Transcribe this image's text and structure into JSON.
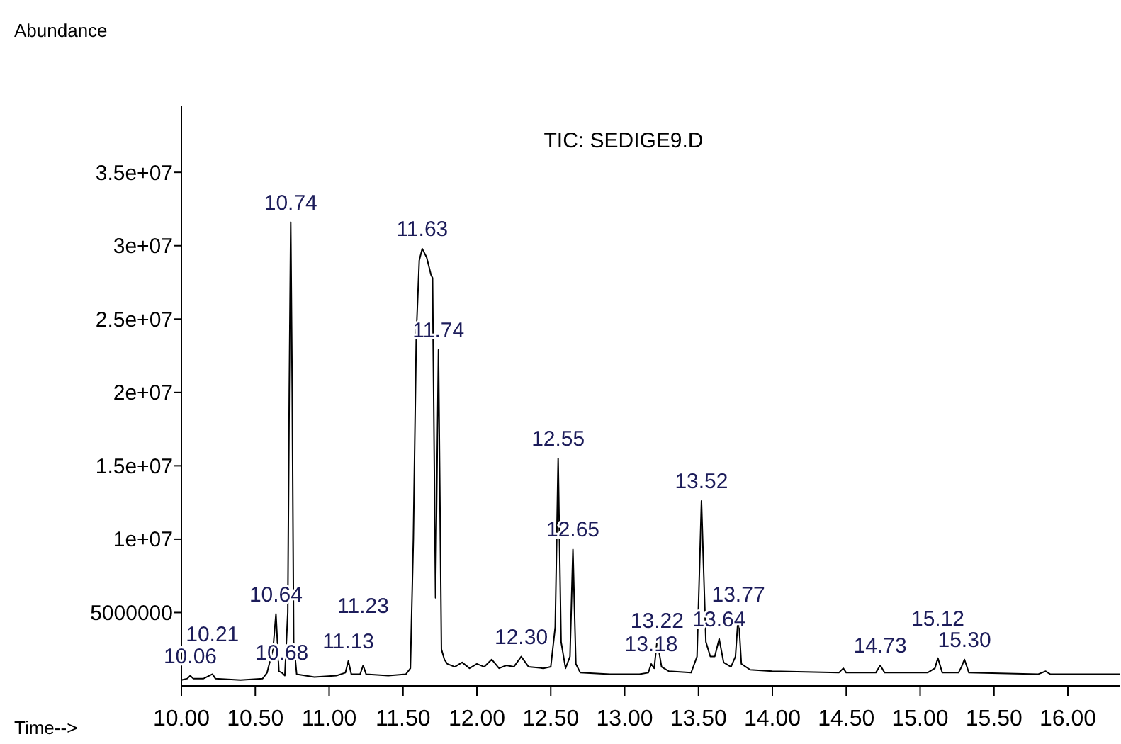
{
  "chart_data": {
    "type": "line",
    "title": "TIC: SEDIGE9.D",
    "ylabel": "Abundance",
    "xlabel": "Time-->",
    "x": [
      10.0,
      10.04,
      10.06,
      10.08,
      10.15,
      10.21,
      10.23,
      10.4,
      10.55,
      10.58,
      10.62,
      10.64,
      10.66,
      10.68,
      10.7,
      10.72,
      10.73,
      10.74,
      10.75,
      10.76,
      10.78,
      10.9,
      11.05,
      11.11,
      11.13,
      11.15,
      11.21,
      11.23,
      11.25,
      11.4,
      11.52,
      11.55,
      11.57,
      11.59,
      11.61,
      11.63,
      11.66,
      11.69,
      11.7,
      11.72,
      11.74,
      11.76,
      11.78,
      11.8,
      11.85,
      11.9,
      11.95,
      12.0,
      12.05,
      12.1,
      12.15,
      12.2,
      12.25,
      12.3,
      12.35,
      12.45,
      12.5,
      12.53,
      12.55,
      12.57,
      12.6,
      12.63,
      12.65,
      12.67,
      12.7,
      12.9,
      13.1,
      13.16,
      13.18,
      13.2,
      13.22,
      13.25,
      13.3,
      13.45,
      13.49,
      13.52,
      13.55,
      13.58,
      13.61,
      13.64,
      13.67,
      13.72,
      13.75,
      13.77,
      13.79,
      13.85,
      14.0,
      14.45,
      14.48,
      14.5,
      14.7,
      14.73,
      14.76,
      15.05,
      15.1,
      15.12,
      15.15,
      15.26,
      15.28,
      15.3,
      15.33,
      15.8,
      15.85,
      15.88,
      16.35
    ],
    "series": [
      {
        "color": "#000000",
        "values": [
          400000,
          500000,
          700000,
          500000,
          500000,
          800000,
          500000,
          400000,
          500000,
          900000,
          2500000,
          4900000,
          1000000,
          900000,
          700000,
          5000000,
          20000000,
          31600000,
          20000000,
          3000000,
          800000,
          600000,
          700000,
          900000,
          1700000,
          800000,
          800000,
          1400000,
          800000,
          700000,
          800000,
          1200000,
          10000000,
          24000000,
          29000000,
          29800000,
          29200000,
          28000000,
          27800000,
          6000000,
          22900000,
          2500000,
          1800000,
          1500000,
          1300000,
          1600000,
          1200000,
          1500000,
          1300000,
          1800000,
          1200000,
          1400000,
          1300000,
          2000000,
          1300000,
          1200000,
          1300000,
          4000000,
          15500000,
          3000000,
          1200000,
          2000000,
          9300000,
          1500000,
          900000,
          800000,
          800000,
          900000,
          1500000,
          1200000,
          3100000,
          1300000,
          1000000,
          900000,
          2000000,
          12600000,
          3000000,
          2000000,
          2000000,
          3200000,
          1600000,
          1300000,
          2000000,
          4900000,
          1500000,
          1100000,
          1000000,
          900000,
          1200000,
          900000,
          900000,
          1400000,
          900000,
          900000,
          1200000,
          1900000,
          900000,
          900000,
          1300000,
          1800000,
          900000,
          800000,
          1000000,
          800000,
          800000
        ]
      }
    ],
    "xlim": [
      10.0,
      16.35
    ],
    "xticks": [
      {
        "value": 10,
        "label": "10.00"
      },
      {
        "value": 10.5,
        "label": "10.50"
      },
      {
        "value": 11,
        "label": "11.00"
      },
      {
        "value": 11.5,
        "label": "11.50"
      },
      {
        "value": 12,
        "label": "12.00"
      },
      {
        "value": 12.5,
        "label": "12.50"
      },
      {
        "value": 13,
        "label": "13.00"
      },
      {
        "value": 13.5,
        "label": "13.50"
      },
      {
        "value": 14,
        "label": "14.00"
      },
      {
        "value": 14.5,
        "label": "14.50"
      },
      {
        "value": 15,
        "label": "15.00"
      },
      {
        "value": 15.5,
        "label": "15.50"
      },
      {
        "value": 16,
        "label": "16.00"
      }
    ],
    "ylim": [
      0,
      39500000
    ],
    "yticks": [
      {
        "value": 5000000,
        "label": "5000000"
      },
      {
        "value": 10000000,
        "label": "1e+07"
      },
      {
        "value": 15000000,
        "label": "1.5e+07"
      },
      {
        "value": 20000000,
        "label": "2e+07"
      },
      {
        "value": 25000000,
        "label": "2.5e+07"
      },
      {
        "value": 30000000,
        "label": "3e+07"
      },
      {
        "value": 35000000,
        "label": "3.5e+07"
      }
    ],
    "annotations": [
      {
        "text": "10.74",
        "x": 10.74,
        "y": 31600000
      },
      {
        "text": "11.63",
        "x": 11.63,
        "y": 29800000
      },
      {
        "text": "11.74",
        "x": 11.74,
        "y": 22900000
      },
      {
        "text": "12.55",
        "x": 12.55,
        "y": 15500000
      },
      {
        "text": "13.52",
        "x": 13.52,
        "y": 12600000
      },
      {
        "text": "12.65",
        "x": 12.65,
        "y": 9300000
      },
      {
        "text": "10.64",
        "x": 10.64,
        "y": 4900000
      },
      {
        "text": "13.77",
        "x": 13.77,
        "y": 4900000
      },
      {
        "text": "13.64",
        "x": 13.64,
        "y": 3200000
      },
      {
        "text": "13.22",
        "x": 13.22,
        "y": 3100000
      },
      {
        "text": "13.18",
        "x": 13.18,
        "y": 1500000
      },
      {
        "text": "12.30",
        "x": 12.3,
        "y": 2000000
      },
      {
        "text": "11.13",
        "x": 11.13,
        "y": 1700000
      },
      {
        "text": "11.23",
        "x": 11.23,
        "y": 1400000
      },
      {
        "text": "14.73",
        "x": 14.73,
        "y": 1400000
      },
      {
        "text": "15.12",
        "x": 15.12,
        "y": 1900000
      },
      {
        "text": "15.30",
        "x": 15.3,
        "y": 1800000
      },
      {
        "text": "10.06",
        "x": 10.06,
        "y": 700000
      },
      {
        "text": "10.21",
        "x": 10.21,
        "y": 800000
      },
      {
        "text": "10.68",
        "x": 10.68,
        "y": 900000
      }
    ]
  }
}
